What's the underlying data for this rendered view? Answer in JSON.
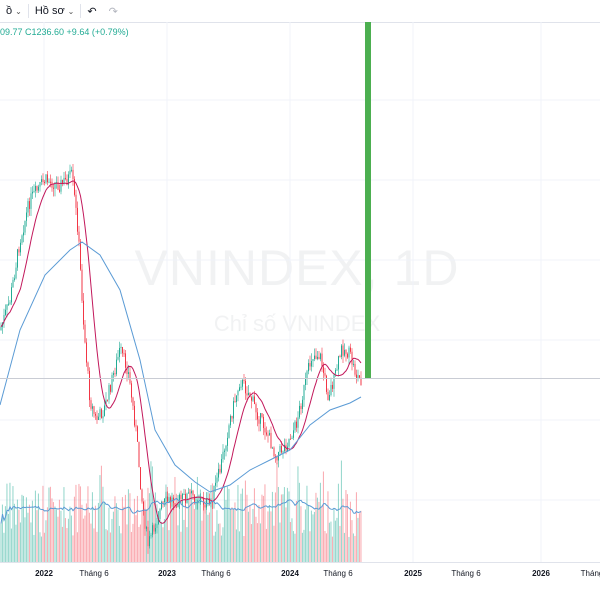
{
  "toolbar": {
    "left_cut_label": "ồ",
    "profile_label": "Hồ sơ",
    "undo_icon": "undo-icon",
    "redo_icon": "redo-icon"
  },
  "legend": {
    "ohlc_text": "09.77  C1236.60  +9.64 (+0.79%)"
  },
  "watermark": {
    "symbol": "VNINDEX, 1D",
    "description": "Chỉ số VNINDEX"
  },
  "xaxis": {
    "ticks": [
      {
        "label": "2022",
        "bold": true
      },
      {
        "label": "Tháng 6",
        "bold": false
      },
      {
        "label": "2023",
        "bold": true
      },
      {
        "label": "Tháng 6",
        "bold": false
      },
      {
        "label": "2024",
        "bold": true
      },
      {
        "label": "Tháng 6",
        "bold": false
      },
      {
        "label": "2025",
        "bold": true
      },
      {
        "label": "Tháng 6",
        "bold": false
      },
      {
        "label": "2026",
        "bold": true
      },
      {
        "label": "Tháng",
        "bold": false
      }
    ]
  },
  "colors": {
    "up": "#22ab94",
    "down": "#f23645",
    "ma_fast": "#c2185b",
    "ma_slow": "#2962ff",
    "highlight_bar": "#4caf50"
  }
}
